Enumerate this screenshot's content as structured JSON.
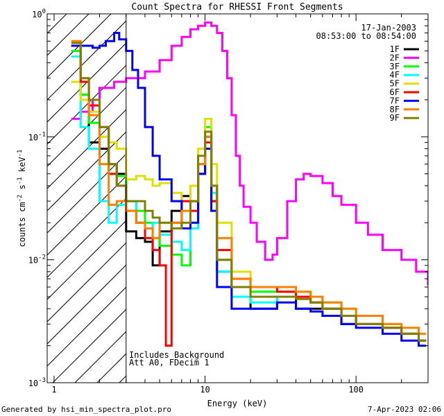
{
  "chart_data": {
    "type": "line",
    "title": "Count Spectra for RHESSI Front Segments",
    "xlabel": "Energy (keV)",
    "ylabel_parts": [
      "counts cm",
      "-2",
      " s",
      "-1",
      " keV",
      "-1"
    ],
    "xscale": "log",
    "yscale": "log",
    "xlim": [
      0.9,
      300
    ],
    "ylim": [
      0.001,
      1.0
    ],
    "x_tick_labels": [
      {
        "value": 1,
        "label": "1"
      },
      {
        "value": 10,
        "label": "10"
      },
      {
        "value": 100,
        "label": "100"
      }
    ],
    "y_tick_labels": [
      {
        "value": 1,
        "base": "10",
        "exp": "0"
      },
      {
        "value": 0.1,
        "base": "10",
        "exp": "-1"
      },
      {
        "value": 0.01,
        "base": "10",
        "exp": "-2"
      },
      {
        "value": 0.001,
        "base": "10",
        "exp": "-3"
      }
    ],
    "hatch_region_xmax": 3,
    "legend_dates": [
      "17-Jan-2003",
      "08:53:00 to 08:54:00"
    ],
    "legend_position": "top-right",
    "annotations": [
      "Includes Background",
      "Att A0, FDecim 1"
    ],
    "series": [
      {
        "name": "1F",
        "color": "#000000",
        "points": [
          [
            1.3,
            0.55
          ],
          [
            1.5,
            0.22
          ],
          [
            1.7,
            0.09
          ],
          [
            2.0,
            0.08
          ],
          [
            2.3,
            0.06
          ],
          [
            2.6,
            0.05
          ],
          [
            3.0,
            0.017
          ],
          [
            3.5,
            0.015
          ],
          [
            4.0,
            0.014
          ],
          [
            4.5,
            0.009
          ],
          [
            5.0,
            0.017
          ],
          [
            6.0,
            0.025
          ],
          [
            7.0,
            0.033
          ],
          [
            8.0,
            0.03
          ],
          [
            9.0,
            0.06
          ],
          [
            10.0,
            0.1
          ],
          [
            11.0,
            0.03
          ],
          [
            12.0,
            0.008
          ],
          [
            15.0,
            0.005
          ],
          [
            20.0,
            0.004
          ],
          [
            30.0,
            0.005
          ],
          [
            40.0,
            0.004
          ],
          [
            50.0,
            0.004
          ],
          [
            60.0,
            0.004
          ],
          [
            80.0,
            0.003
          ],
          [
            100.0,
            0.003
          ],
          [
            150.0,
            0.0028
          ],
          [
            200.0,
            0.0025
          ],
          [
            260.0,
            0.0022
          ]
        ]
      },
      {
        "name": "2F",
        "color": "#ff00ff",
        "points": [
          [
            1.3,
            0.14
          ],
          [
            1.5,
            0.16
          ],
          [
            1.8,
            0.2
          ],
          [
            2.0,
            0.25
          ],
          [
            2.5,
            0.28
          ],
          [
            3.0,
            0.3
          ],
          [
            4.0,
            0.34
          ],
          [
            5.0,
            0.42
          ],
          [
            6.0,
            0.55
          ],
          [
            7.0,
            0.65
          ],
          [
            8.0,
            0.75
          ],
          [
            9.0,
            0.8
          ],
          [
            10.0,
            0.85
          ],
          [
            11.0,
            0.8
          ],
          [
            12.0,
            0.7
          ],
          [
            13.0,
            0.5
          ],
          [
            14.0,
            0.3
          ],
          [
            15.0,
            0.15
          ],
          [
            16.0,
            0.07
          ],
          [
            17.0,
            0.04
          ],
          [
            18.0,
            0.027
          ],
          [
            20.0,
            0.02
          ],
          [
            22.0,
            0.014
          ],
          [
            25.0,
            0.01
          ],
          [
            28.0,
            0.011
          ],
          [
            30.0,
            0.015
          ],
          [
            35.0,
            0.03
          ],
          [
            40.0,
            0.045
          ],
          [
            45.0,
            0.05
          ],
          [
            50.0,
            0.048
          ],
          [
            60.0,
            0.042
          ],
          [
            70.0,
            0.033
          ],
          [
            80.0,
            0.028
          ],
          [
            100.0,
            0.02
          ],
          [
            120.0,
            0.016
          ],
          [
            150.0,
            0.012
          ],
          [
            200.0,
            0.01
          ],
          [
            250.0,
            0.008
          ],
          [
            300.0,
            0.0062
          ]
        ]
      },
      {
        "name": "3F",
        "color": "#00ff00",
        "points": [
          [
            1.3,
            0.5
          ],
          [
            1.5,
            0.22
          ],
          [
            1.7,
            0.13
          ],
          [
            2.0,
            0.06
          ],
          [
            2.3,
            0.05
          ],
          [
            2.6,
            0.048
          ],
          [
            3.0,
            0.03
          ],
          [
            3.5,
            0.025
          ],
          [
            4.0,
            0.02
          ],
          [
            4.5,
            0.015
          ],
          [
            5.0,
            0.013
          ],
          [
            6.0,
            0.011
          ],
          [
            7.0,
            0.009
          ],
          [
            8.0,
            0.02
          ],
          [
            9.0,
            0.06
          ],
          [
            10.0,
            0.12
          ],
          [
            11.0,
            0.04
          ],
          [
            12.0,
            0.01
          ],
          [
            15.0,
            0.006
          ],
          [
            20.0,
            0.0055
          ],
          [
            30.0,
            0.006
          ],
          [
            40.0,
            0.0055
          ],
          [
            50.0,
            0.005
          ],
          [
            60.0,
            0.0045
          ],
          [
            80.0,
            0.004
          ],
          [
            100.0,
            0.0035
          ],
          [
            150.0,
            0.003
          ],
          [
            200.0,
            0.0025
          ],
          [
            260.0,
            0.0022
          ]
        ]
      },
      {
        "name": "4F",
        "color": "#00ffff",
        "points": [
          [
            1.3,
            0.45
          ],
          [
            1.5,
            0.12
          ],
          [
            1.7,
            0.08
          ],
          [
            2.0,
            0.03
          ],
          [
            2.3,
            0.02
          ],
          [
            2.6,
            0.028
          ],
          [
            3.0,
            0.03
          ],
          [
            3.5,
            0.02
          ],
          [
            4.0,
            0.018
          ],
          [
            4.5,
            0.02
          ],
          [
            5.0,
            0.016
          ],
          [
            6.0,
            0.014
          ],
          [
            7.0,
            0.012
          ],
          [
            8.0,
            0.018
          ],
          [
            9.0,
            0.05
          ],
          [
            10.0,
            0.11
          ],
          [
            11.0,
            0.035
          ],
          [
            12.0,
            0.008
          ],
          [
            15.0,
            0.005
          ],
          [
            20.0,
            0.0045
          ],
          [
            30.0,
            0.005
          ],
          [
            40.0,
            0.005
          ],
          [
            50.0,
            0.0045
          ],
          [
            60.0,
            0.004
          ],
          [
            80.0,
            0.0035
          ],
          [
            100.0,
            0.003
          ],
          [
            150.0,
            0.0028
          ],
          [
            200.0,
            0.0025
          ],
          [
            260.0,
            0.0022
          ]
        ]
      },
      {
        "name": "5F",
        "color": "#e0e000",
        "points": [
          [
            1.3,
            0.28
          ],
          [
            1.5,
            0.2
          ],
          [
            1.7,
            0.16
          ],
          [
            2.0,
            0.1
          ],
          [
            2.3,
            0.09
          ],
          [
            2.6,
            0.08
          ],
          [
            3.0,
            0.045
          ],
          [
            3.5,
            0.048
          ],
          [
            4.0,
            0.045
          ],
          [
            4.5,
            0.04
          ],
          [
            5.0,
            0.042
          ],
          [
            6.0,
            0.035
          ],
          [
            7.0,
            0.03
          ],
          [
            8.0,
            0.04
          ],
          [
            9.0,
            0.08
          ],
          [
            10.0,
            0.14
          ],
          [
            11.0,
            0.06
          ],
          [
            12.0,
            0.02
          ],
          [
            15.0,
            0.008
          ],
          [
            20.0,
            0.006
          ],
          [
            30.0,
            0.0055
          ],
          [
            40.0,
            0.005
          ],
          [
            50.0,
            0.0045
          ],
          [
            60.0,
            0.004
          ],
          [
            80.0,
            0.0035
          ],
          [
            100.0,
            0.003
          ],
          [
            150.0,
            0.0028
          ],
          [
            200.0,
            0.0025
          ],
          [
            260.0,
            0.0022
          ]
        ]
      },
      {
        "name": "6F",
        "color": "#ff0000",
        "points": [
          [
            1.3,
            0.55
          ],
          [
            1.5,
            0.28
          ],
          [
            1.7,
            0.18
          ],
          [
            2.0,
            0.12
          ],
          [
            2.3,
            0.05
          ],
          [
            2.6,
            0.04
          ],
          [
            3.0,
            0.025
          ],
          [
            3.5,
            0.02
          ],
          [
            4.0,
            0.015
          ],
          [
            4.5,
            0.012
          ],
          [
            5.0,
            0.009
          ],
          [
            5.5,
            0.002
          ],
          [
            6.0,
            0.02
          ],
          [
            7.0,
            0.03
          ],
          [
            8.0,
            0.025
          ],
          [
            9.0,
            0.05
          ],
          [
            10.0,
            0.09
          ],
          [
            11.0,
            0.03
          ],
          [
            12.0,
            0.012
          ],
          [
            15.0,
            0.007
          ],
          [
            20.0,
            0.006
          ],
          [
            30.0,
            0.0055
          ],
          [
            40.0,
            0.005
          ],
          [
            50.0,
            0.0045
          ],
          [
            60.0,
            0.004
          ],
          [
            80.0,
            0.0035
          ],
          [
            100.0,
            0.003
          ],
          [
            150.0,
            0.0028
          ],
          [
            200.0,
            0.0025
          ],
          [
            260.0,
            0.0022
          ]
        ]
      },
      {
        "name": "7F",
        "color": "#0000ff",
        "points": [
          [
            1.3,
            0.55
          ],
          [
            1.5,
            0.55
          ],
          [
            1.8,
            0.53
          ],
          [
            2.0,
            0.55
          ],
          [
            2.2,
            0.6
          ],
          [
            2.5,
            0.7
          ],
          [
            2.7,
            0.62
          ],
          [
            3.0,
            0.5
          ],
          [
            3.3,
            0.35
          ],
          [
            3.6,
            0.25
          ],
          [
            4.0,
            0.12
          ],
          [
            4.5,
            0.07
          ],
          [
            5.0,
            0.045
          ],
          [
            6.0,
            0.03
          ],
          [
            7.0,
            0.018
          ],
          [
            8.0,
            0.02
          ],
          [
            9.0,
            0.05
          ],
          [
            10.0,
            0.08
          ],
          [
            11.0,
            0.025
          ],
          [
            12.0,
            0.006
          ],
          [
            15.0,
            0.004
          ],
          [
            20.0,
            0.004
          ],
          [
            30.0,
            0.0045
          ],
          [
            40.0,
            0.004
          ],
          [
            50.0,
            0.0038
          ],
          [
            60.0,
            0.0035
          ],
          [
            80.0,
            0.003
          ],
          [
            100.0,
            0.0028
          ],
          [
            150.0,
            0.0025
          ],
          [
            200.0,
            0.0022
          ],
          [
            260.0,
            0.002
          ]
        ]
      },
      {
        "name": "8F",
        "color": "#ff8000",
        "points": [
          [
            1.3,
            0.6
          ],
          [
            1.5,
            0.3
          ],
          [
            1.7,
            0.15
          ],
          [
            2.0,
            0.06
          ],
          [
            2.3,
            0.028
          ],
          [
            2.6,
            0.03
          ],
          [
            3.0,
            0.025
          ],
          [
            3.5,
            0.02
          ],
          [
            4.0,
            0.018
          ],
          [
            4.5,
            0.015
          ],
          [
            5.0,
            0.02
          ],
          [
            6.0,
            0.02
          ],
          [
            7.0,
            0.025
          ],
          [
            8.0,
            0.03
          ],
          [
            9.0,
            0.06
          ],
          [
            10.0,
            0.1
          ],
          [
            11.0,
            0.04
          ],
          [
            12.0,
            0.015
          ],
          [
            15.0,
            0.007
          ],
          [
            20.0,
            0.006
          ],
          [
            30.0,
            0.006
          ],
          [
            40.0,
            0.0055
          ],
          [
            50.0,
            0.005
          ],
          [
            60.0,
            0.0045
          ],
          [
            80.0,
            0.004
          ],
          [
            100.0,
            0.0035
          ],
          [
            150.0,
            0.003
          ],
          [
            200.0,
            0.0028
          ],
          [
            260.0,
            0.0025
          ]
        ]
      },
      {
        "name": "9F",
        "color": "#808000",
        "points": [
          [
            1.3,
            0.58
          ],
          [
            1.5,
            0.3
          ],
          [
            1.7,
            0.2
          ],
          [
            2.0,
            0.12
          ],
          [
            2.3,
            0.06
          ],
          [
            2.6,
            0.04
          ],
          [
            3.0,
            0.03
          ],
          [
            3.5,
            0.03
          ],
          [
            4.0,
            0.025
          ],
          [
            4.5,
            0.022
          ],
          [
            5.0,
            0.02
          ],
          [
            6.0,
            0.018
          ],
          [
            7.0,
            0.02
          ],
          [
            8.0,
            0.03
          ],
          [
            9.0,
            0.07
          ],
          [
            10.0,
            0.11
          ],
          [
            11.0,
            0.04
          ],
          [
            12.0,
            0.01
          ],
          [
            15.0,
            0.006
          ],
          [
            20.0,
            0.005
          ],
          [
            30.0,
            0.005
          ],
          [
            40.0,
            0.0048
          ],
          [
            50.0,
            0.0045
          ],
          [
            60.0,
            0.004
          ],
          [
            80.0,
            0.0035
          ],
          [
            100.0,
            0.003
          ],
          [
            150.0,
            0.0028
          ],
          [
            200.0,
            0.0025
          ],
          [
            260.0,
            0.0022
          ]
        ]
      }
    ]
  },
  "footer": {
    "left": "Generated by hsi_min_spectra_plot.pro",
    "right": "7-Apr-2023 02:06"
  }
}
